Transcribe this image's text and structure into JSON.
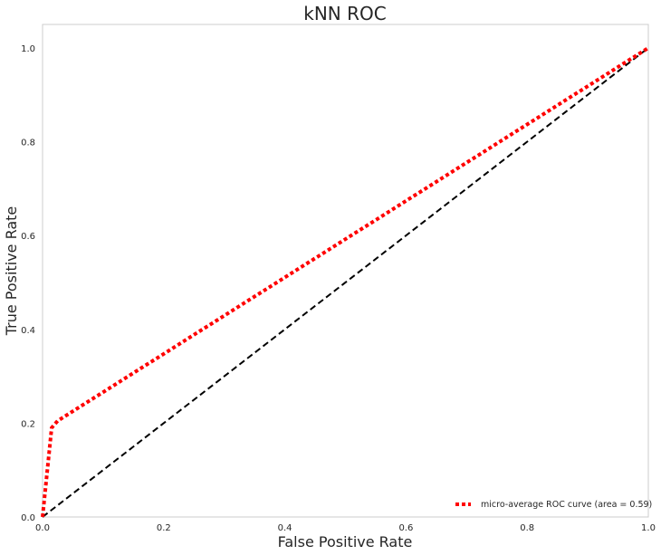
{
  "chart_data": {
    "type": "line",
    "title": "kNN ROC",
    "xlabel": "False Positive Rate",
    "ylabel": "True Positive Rate",
    "xlim": [
      0.0,
      1.0
    ],
    "ylim": [
      0.0,
      1.05
    ],
    "xticks": [
      "0.0",
      "0.2",
      "0.4",
      "0.6",
      "0.8",
      "1.0"
    ],
    "yticks": [
      "0.0",
      "0.2",
      "0.4",
      "0.6",
      "0.8",
      "1.0"
    ],
    "grid": false,
    "legend_position": "lower-right",
    "series": [
      {
        "name": "micro-average ROC curve (area = 0.59)",
        "color": "#ff0000",
        "style": "dotted",
        "x": [
          0.0,
          0.015,
          0.025,
          1.0
        ],
        "y": [
          0.0,
          0.19,
          0.205,
          1.0
        ]
      },
      {
        "color": "#000000",
        "style": "dashed",
        "x": [
          0.0,
          1.0
        ],
        "y": [
          0.0,
          1.0
        ]
      }
    ]
  }
}
